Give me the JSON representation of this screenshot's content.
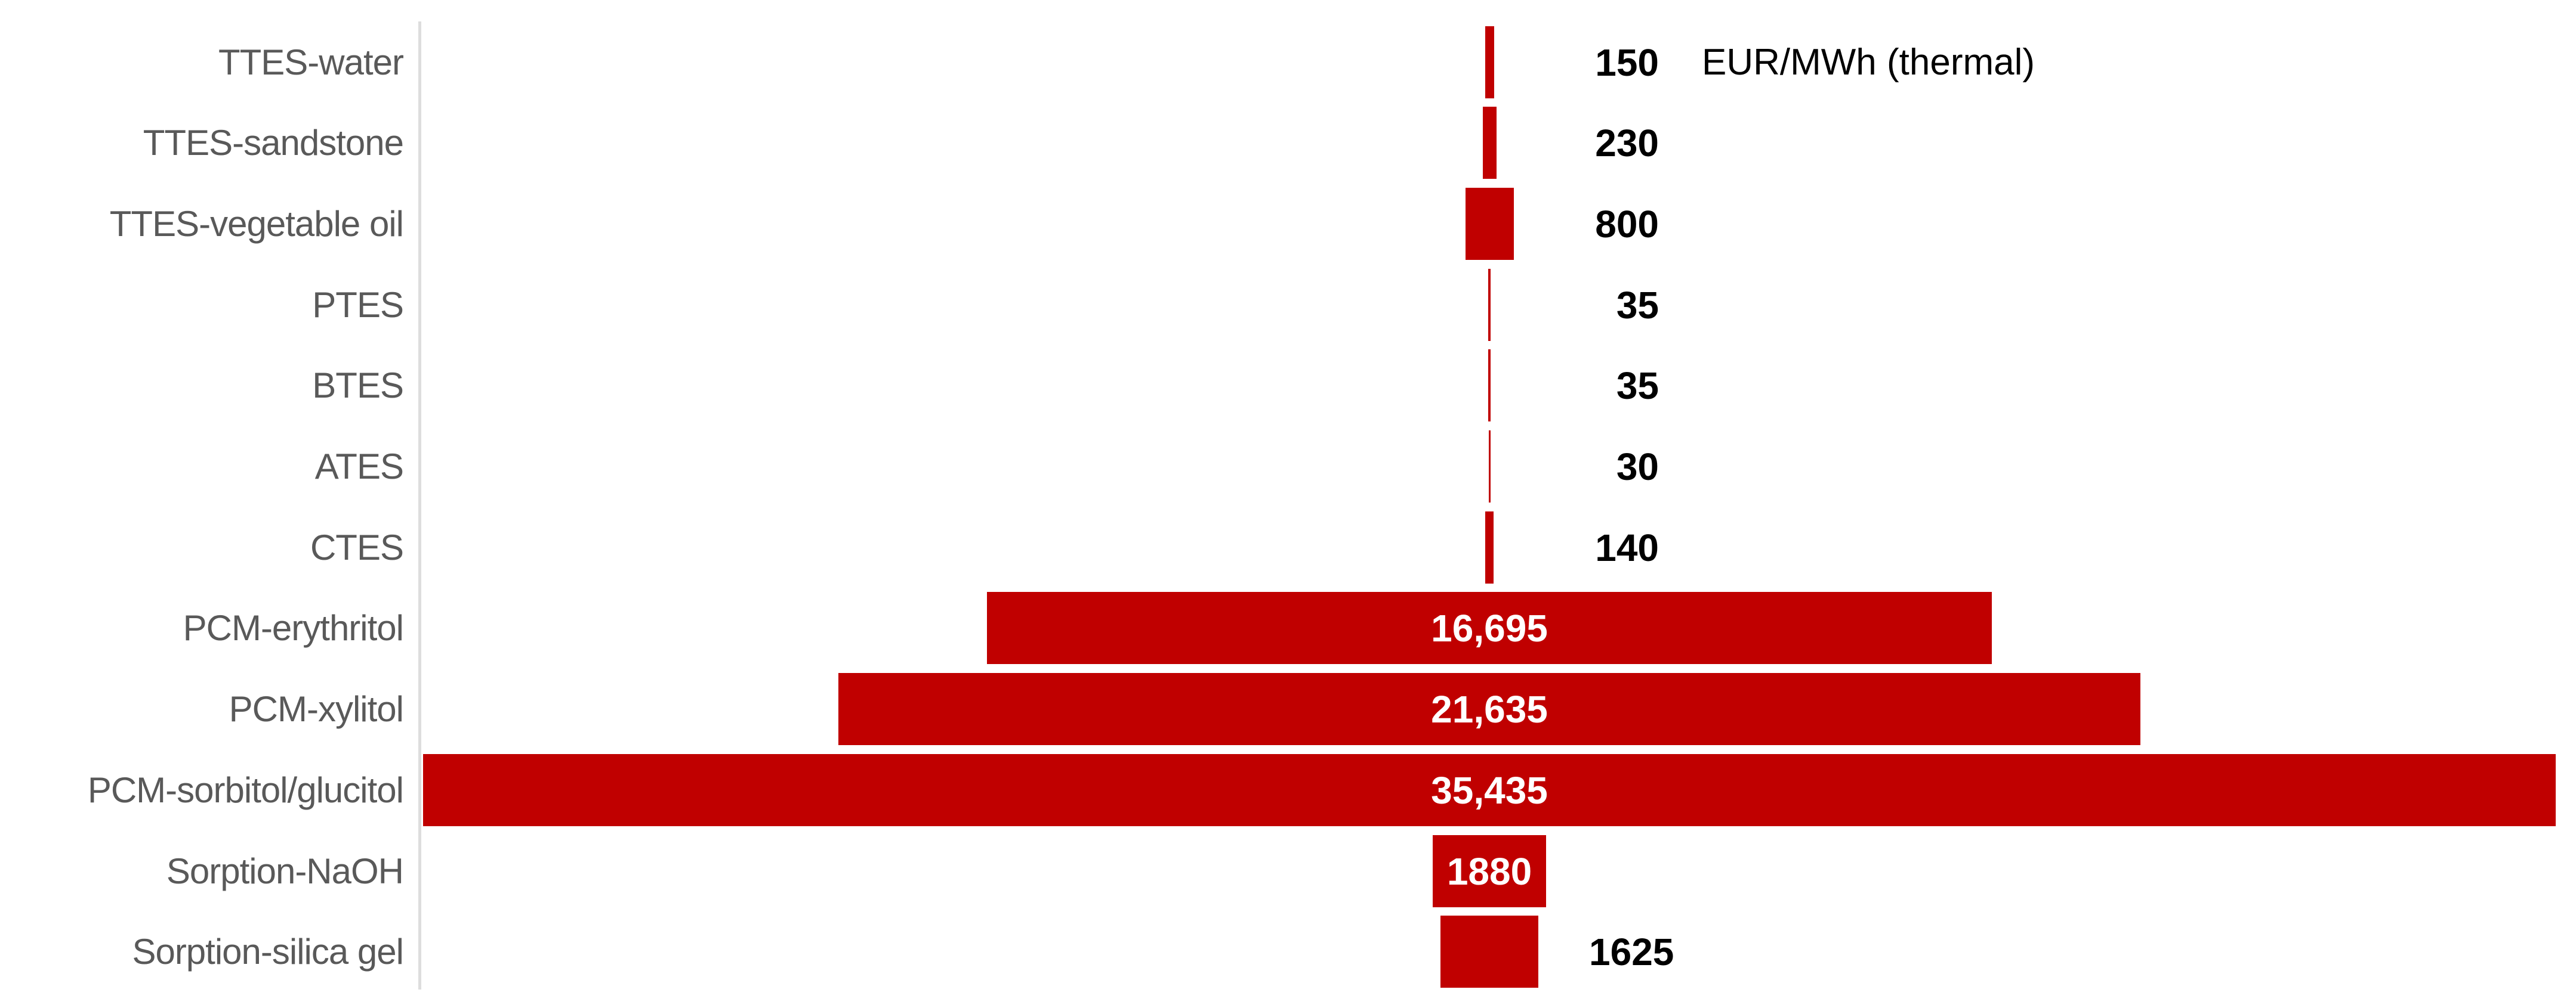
{
  "chart_data": {
    "type": "bar",
    "subtype": "horizontal-centered-pyramid",
    "title": "",
    "xlabel": "",
    "ylabel": "",
    "unit_label": "EUR/MWh (thermal)",
    "grid": false,
    "legend": null,
    "value_range": [
      0,
      35435
    ],
    "categories": [
      "TTES-water",
      "TTES-sandstone",
      "TTES-vegetable oil",
      "PTES",
      "BTES",
      "ATES",
      "CTES",
      "PCM-erythritol",
      "PCM-xylitol",
      "PCM-sorbitol/glucitol",
      "Sorption-NaOH",
      "Sorption-silica gel"
    ],
    "values": [
      150,
      230,
      800,
      35,
      35,
      30,
      140,
      16695,
      21635,
      35435,
      1880,
      1625
    ],
    "value_labels": [
      "150",
      "230",
      "800",
      "35",
      "35",
      "30",
      "140",
      "16,695",
      "21,635",
      "35,435",
      "1880",
      "1625"
    ],
    "label_placement": [
      "right-column",
      "right-column",
      "right-column",
      "right-column",
      "right-column",
      "right-column",
      "right-column",
      "inside",
      "inside",
      "inside",
      "inside",
      "after-bar"
    ],
    "colors": {
      "bar": "#C00000",
      "category_text": "#595959",
      "value_text": "#000000",
      "value_text_inside": "#FFFFFF",
      "axis_line": "#DDDDDD",
      "background": "#FFFFFF"
    }
  }
}
